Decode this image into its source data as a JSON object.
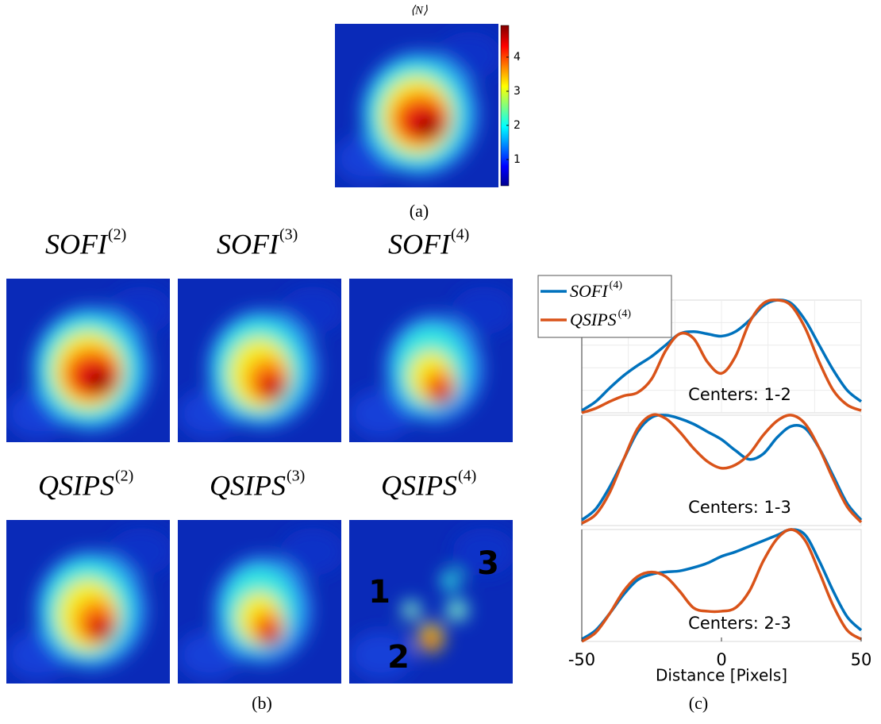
{
  "panel_a": {
    "title": "⟨N⟩",
    "caption": "(a)",
    "colorbar": {
      "ylim": [
        0.23,
        4.93
      ],
      "yticks": [
        1,
        2,
        3,
        4
      ]
    }
  },
  "panel_b": {
    "caption": "(b)",
    "images": [
      {
        "label": "SOFI",
        "superscript": "(2)"
      },
      {
        "label": "SOFI",
        "superscript": "(3)"
      },
      {
        "label": "SOFI",
        "superscript": "(4)"
      },
      {
        "label": "QSIPS",
        "superscript": "(2)"
      },
      {
        "label": "QSIPS",
        "superscript": "(3)"
      },
      {
        "label": "QSIPS",
        "superscript": "(4)"
      }
    ],
    "spot_labels": [
      "1",
      "2",
      "3"
    ]
  },
  "panel_c": {
    "caption": "(c)"
  },
  "chart_data": [
    {
      "type": "line",
      "annotation": "Centers: 1-2",
      "legend": "upper left",
      "grid": true,
      "x": [
        -50,
        -45,
        -40,
        -35,
        -30,
        -25,
        -20,
        -15,
        -10,
        -5,
        0,
        5,
        10,
        15,
        20,
        25,
        30,
        35,
        40,
        45,
        50
      ],
      "xlim": [
        -50,
        50
      ],
      "ylim": [
        0,
        1
      ],
      "series": [
        {
          "name": "SOFI",
          "superscript": "(4)",
          "color": "#0072bd",
          "values": [
            0.02,
            0.1,
            0.22,
            0.33,
            0.42,
            0.5,
            0.6,
            0.7,
            0.72,
            0.7,
            0.68,
            0.72,
            0.82,
            0.95,
            1.0,
            0.97,
            0.82,
            0.6,
            0.38,
            0.2,
            0.1
          ]
        },
        {
          "name": "QSIPS",
          "superscript": "(4)",
          "color": "#d95319",
          "values": [
            0.0,
            0.04,
            0.1,
            0.15,
            0.18,
            0.3,
            0.55,
            0.7,
            0.66,
            0.45,
            0.35,
            0.5,
            0.8,
            0.97,
            1.0,
            0.95,
            0.75,
            0.45,
            0.2,
            0.07,
            0.02
          ]
        }
      ]
    },
    {
      "type": "line",
      "annotation": "Centers: 1-3",
      "x": [
        -50,
        -45,
        -40,
        -35,
        -30,
        -25,
        -20,
        -15,
        -10,
        -5,
        0,
        5,
        10,
        15,
        20,
        25,
        30,
        35,
        40,
        45,
        50
      ],
      "xlim": [
        -50,
        50
      ],
      "ylim": [
        0,
        1
      ],
      "series": [
        {
          "color": "#0072bd",
          "values": [
            0.05,
            0.15,
            0.35,
            0.6,
            0.85,
            0.98,
            1.0,
            0.97,
            0.92,
            0.85,
            0.78,
            0.68,
            0.6,
            0.65,
            0.8,
            0.9,
            0.88,
            0.7,
            0.45,
            0.2,
            0.05
          ]
        },
        {
          "color": "#d95319",
          "values": [
            0.02,
            0.1,
            0.3,
            0.6,
            0.88,
            1.0,
            0.97,
            0.85,
            0.7,
            0.58,
            0.52,
            0.55,
            0.65,
            0.82,
            0.95,
            1.0,
            0.92,
            0.7,
            0.42,
            0.17,
            0.03
          ]
        }
      ]
    },
    {
      "type": "line",
      "annotation": "Centers: 2-3",
      "xlabel": "Distance [Pixels]",
      "x": [
        -50,
        -45,
        -40,
        -35,
        -30,
        -25,
        -20,
        -15,
        -10,
        -5,
        0,
        5,
        10,
        15,
        20,
        25,
        30,
        35,
        40,
        45,
        50
      ],
      "xlim": [
        -50,
        50
      ],
      "ylim": [
        0,
        1
      ],
      "xticks": [
        -50,
        0,
        50
      ],
      "series": [
        {
          "color": "#0072bd",
          "values": [
            0.02,
            0.1,
            0.25,
            0.42,
            0.55,
            0.6,
            0.62,
            0.63,
            0.66,
            0.7,
            0.76,
            0.8,
            0.85,
            0.9,
            0.95,
            1.0,
            0.95,
            0.72,
            0.45,
            0.22,
            0.1
          ]
        },
        {
          "color": "#d95319",
          "values": [
            0.0,
            0.08,
            0.25,
            0.45,
            0.58,
            0.62,
            0.58,
            0.45,
            0.3,
            0.27,
            0.27,
            0.3,
            0.45,
            0.72,
            0.92,
            1.0,
            0.9,
            0.62,
            0.32,
            0.1,
            0.02
          ]
        }
      ]
    }
  ]
}
